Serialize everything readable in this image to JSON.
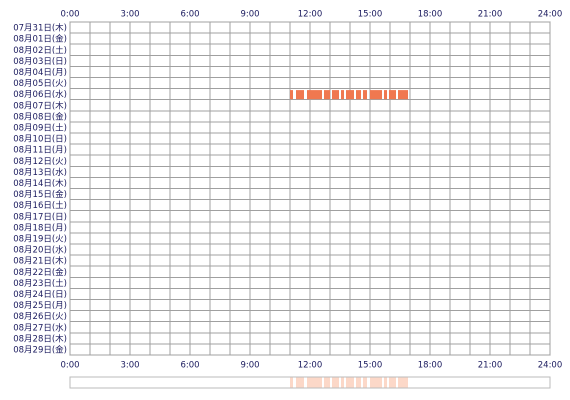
{
  "chart_data": {
    "type": "timeline",
    "categories": [
      "07月31日(木)",
      "08月01日(金)",
      "08月02日(土)",
      "08月03日(日)",
      "08月04日(月)",
      "08月05日(火)",
      "08月06日(水)",
      "08月07日(木)",
      "08月08日(金)",
      "08月09日(土)",
      "08月10日(日)",
      "08月11日(月)",
      "08月12日(火)",
      "08月13日(水)",
      "08月14日(木)",
      "08月15日(金)",
      "08月16日(土)",
      "08月17日(日)",
      "08月18日(月)",
      "08月19日(火)",
      "08月20日(水)",
      "08月21日(木)",
      "08月22日(金)",
      "08月23日(土)",
      "08月24日(日)",
      "08月25日(月)",
      "08月26日(火)",
      "08月27日(水)",
      "08月28日(木)",
      "08月29日(金)"
    ],
    "values": [
      [],
      [],
      [],
      [],
      [],
      [],
      [
        [
          11.0,
          11.15
        ],
        [
          11.3,
          11.7
        ],
        [
          11.85,
          12.6
        ],
        [
          12.7,
          13.0
        ],
        [
          13.1,
          13.45
        ],
        [
          13.55,
          13.7
        ],
        [
          13.8,
          14.2
        ],
        [
          14.3,
          14.55
        ],
        [
          14.65,
          14.85
        ],
        [
          15.0,
          15.6
        ],
        [
          15.7,
          15.85
        ],
        [
          15.95,
          16.3
        ],
        [
          16.4,
          16.9
        ]
      ],
      [],
      [],
      [],
      [],
      [],
      [],
      [],
      [],
      [],
      [],
      [],
      [],
      [],
      [],
      [],
      [],
      [],
      [],
      [],
      [],
      [],
      [],
      []
    ],
    "color": "#f07850",
    "summary_color": "#fcd8c8",
    "xlim": [
      0,
      24
    ],
    "xticks": [
      {
        "value": 0,
        "label": "0:00"
      },
      {
        "value": 3,
        "label": "3:00"
      },
      {
        "value": 6,
        "label": "6:00"
      },
      {
        "value": 9,
        "label": "9:00"
      },
      {
        "value": 12,
        "label": "12:00"
      },
      {
        "value": 15,
        "label": "15:00"
      },
      {
        "value": 18,
        "label": "18:00"
      },
      {
        "value": 21,
        "label": "21:00"
      },
      {
        "value": 24,
        "label": "24:00"
      }
    ],
    "grid_step": 1
  }
}
